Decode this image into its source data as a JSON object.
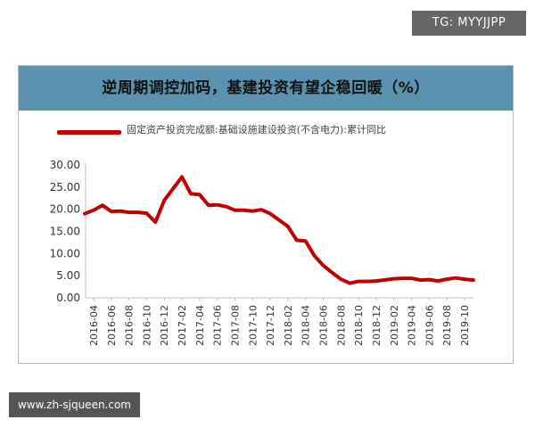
{
  "watermarks": {
    "top_right": "TG: MYYJJPP",
    "bottom_left": "www.zh-sjqueen.com"
  },
  "colors": {
    "title_bar": "#5b92b0",
    "series_line": "#c00000",
    "watermark_bg": "#666666"
  },
  "chart_data": {
    "type": "line",
    "title": "逆周期调控加码，基建投资有望企稳回暖（%）",
    "xlabel": "",
    "ylabel": "",
    "ylim": [
      0,
      30
    ],
    "y_ticks": [
      "0.00",
      "5.00",
      "10.00",
      "15.00",
      "20.00",
      "25.00",
      "30.00"
    ],
    "x_tick_labels": [
      "2016-04",
      "2016-06",
      "2016-08",
      "2016-10",
      "2016-12",
      "2017-02",
      "2017-04",
      "2017-06",
      "2017-08",
      "2017-10",
      "2017-12",
      "2018-02",
      "2018-04",
      "2018-06",
      "2018-08",
      "2018-10",
      "2018-12",
      "2019-02",
      "2019-04",
      "2019-06",
      "2019-08",
      "2019-10"
    ],
    "legend_position": "top",
    "grid": false,
    "x": [
      "2016-03",
      "2016-04",
      "2016-05",
      "2016-06",
      "2016-07",
      "2016-08",
      "2016-09",
      "2016-10",
      "2016-11",
      "2016-12",
      "2017-02",
      "2017-03",
      "2017-04",
      "2017-05",
      "2017-06",
      "2017-07",
      "2017-08",
      "2017-09",
      "2017-10",
      "2017-11",
      "2017-12",
      "2018-02",
      "2018-03",
      "2018-04",
      "2018-05",
      "2018-06",
      "2018-07",
      "2018-08",
      "2018-09",
      "2018-10",
      "2018-11",
      "2018-12",
      "2019-02",
      "2019-03",
      "2019-04",
      "2019-05",
      "2019-06",
      "2019-07",
      "2019-08",
      "2019-09",
      "2019-10",
      "2019-11"
    ],
    "series": [
      {
        "name": "固定资产投资完成额:基础设施建设投资(不含电力):累计同比",
        "values": [
          19.0,
          19.8,
          20.9,
          19.5,
          19.6,
          19.3,
          19.3,
          19.1,
          17.1,
          22.0,
          27.3,
          23.5,
          23.3,
          20.9,
          21.0,
          20.6,
          19.8,
          19.8,
          19.6,
          19.9,
          19.0,
          16.1,
          13.0,
          12.8,
          9.5,
          7.3,
          5.7,
          4.2,
          3.3,
          3.7,
          3.7,
          3.8,
          4.3,
          4.4,
          4.4,
          4.0,
          4.1,
          3.8,
          4.2,
          4.5,
          4.2,
          4.0
        ]
      }
    ]
  }
}
